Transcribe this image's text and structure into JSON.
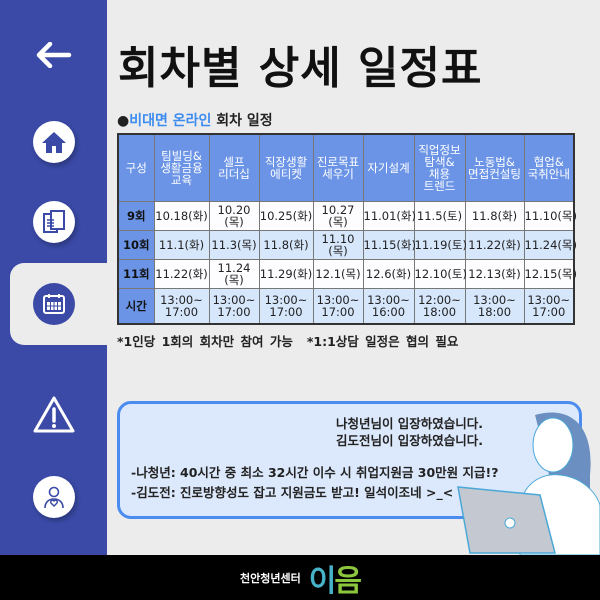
{
  "title": "회차별 상세 일정표",
  "section": {
    "bullet": "●",
    "highlight": "비대면 온라인",
    "rest": " 회차 일정"
  },
  "sidebar": {
    "items": [
      {
        "icon": "back-arrow-icon"
      },
      {
        "icon": "home-icon"
      },
      {
        "icon": "documents-icon"
      },
      {
        "icon": "calendar-icon",
        "active": true
      },
      {
        "icon": "warning-icon"
      },
      {
        "icon": "counselor-icon"
      }
    ]
  },
  "table": {
    "headers": [
      "구성",
      "팀빌딩&\n생활금융\n교육",
      "셀프\n리더십",
      "직장생활\n에티켓",
      "진로목표\n세우기",
      "자기설계",
      "직업정보\n탐색&\n채용\n트렌드",
      "노동법&\n면접컨설팅",
      "협업&\n국취안내"
    ],
    "rows": [
      {
        "label": "9회",
        "cells": [
          "10.18(화)",
          "10.20\n(목)",
          "10.25(화)",
          "10.27\n(목)",
          "11.01(화)",
          "11.5(토)",
          "11.8(화)",
          "11.10(목)"
        ]
      },
      {
        "label": "10회",
        "cells": [
          "11.1(화)",
          "11.3(목)",
          "11.8(화)",
          "11.10\n(목)",
          "11.15(화)",
          "11.19(토)",
          "11.22(화)",
          "11.24(목)"
        ]
      },
      {
        "label": "11회",
        "cells": [
          "11.22(화)",
          "11.24\n(목)",
          "11.29(화)",
          "12.1(목)",
          "12.6(화)",
          "12.10(토)",
          "12.13(화)",
          "12.15(목)"
        ]
      },
      {
        "label": "시간",
        "cells": [
          "13:00~\n17:00",
          "13:00~\n17:00",
          "13:00~\n17:00",
          "13:00~\n17:00",
          "13:00~\n16:00",
          "12:00~\n18:00",
          "13:00~\n18:00",
          "13:00~\n17:00"
        ]
      }
    ]
  },
  "notes": [
    "*1인당 1회의 회차만 참여 가능",
    "*1:1상담 일정은 협의 필요"
  ],
  "chat": {
    "system": [
      "나청년님이 입장하였습니다.",
      "김도전님이 입장하였습니다."
    ],
    "messages": [
      "-나청년: 40시간 중 최소 32시간 이수 시 취업지원금 30만원 지급!?",
      "-김도전: 진로방향성도 잡고 지원금도 받고! 일석이조네 >_<"
    ]
  },
  "footer": {
    "brand": "천안청년센터",
    "logo": "이음"
  },
  "colors": {
    "sidebar": "#3a4aa6",
    "header": "#6b94e6",
    "accent": "#3c8cf0"
  }
}
